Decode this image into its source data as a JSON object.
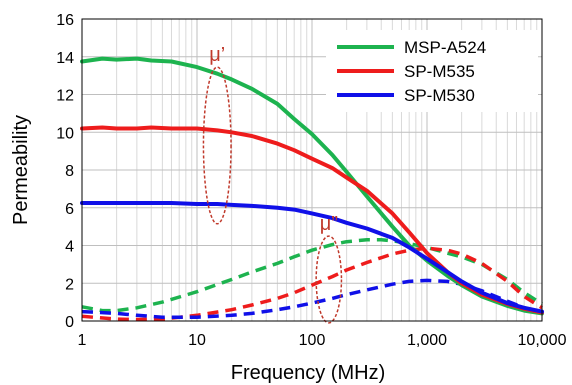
{
  "chart_data": {
    "type": "line",
    "title": "",
    "xlabel": "Frequency (MHz)",
    "ylabel": "Permeability",
    "x_scale": "log",
    "xlim": [
      1,
      10000
    ],
    "ylim": [
      0,
      16
    ],
    "x_ticks": [
      1,
      10,
      100,
      1000,
      10000
    ],
    "x_tick_labels": [
      "1",
      "10",
      "100",
      "1,000",
      "10,000"
    ],
    "y_ticks": [
      0,
      2,
      4,
      6,
      8,
      10,
      12,
      14,
      16
    ],
    "y_tick_labels": [
      "0",
      "2",
      "4",
      "6",
      "8",
      "10",
      "12",
      "14",
      "16"
    ],
    "grid": true,
    "legend": {
      "position": "top-right"
    },
    "annotations": [
      {
        "text": "μ’",
        "x": 15,
        "y": 10.2,
        "ellipse_x": 15,
        "ellipse_y": 9.3,
        "ellipse_w_dec": 0.24,
        "ellipse_h": 8.3
      },
      {
        "text": "μ”",
        "x": 140,
        "y": 3.0,
        "ellipse_x": 140,
        "ellipse_y": 2.2,
        "ellipse_w_dec": 0.22,
        "ellipse_h": 4.6
      }
    ],
    "series": [
      {
        "name": "MSP-A524",
        "part": "real",
        "color": "#1db34f",
        "dash": "solid",
        "in_legend": true,
        "x": [
          1,
          1.5,
          2,
          3,
          4,
          6,
          10,
          15,
          20,
          30,
          50,
          70,
          100,
          150,
          200,
          300,
          500,
          700,
          1000,
          1500,
          2000,
          3000,
          5000,
          7000,
          10000
        ],
        "y": [
          13.75,
          13.9,
          13.85,
          13.9,
          13.8,
          13.75,
          13.45,
          13.1,
          12.8,
          12.3,
          11.5,
          10.7,
          9.9,
          8.8,
          7.9,
          6.6,
          5.0,
          4.0,
          3.2,
          2.4,
          1.9,
          1.3,
          0.8,
          0.55,
          0.4
        ]
      },
      {
        "name": "SP-M535",
        "part": "real",
        "color": "#ee1c1c",
        "dash": "solid",
        "in_legend": true,
        "x": [
          1,
          1.5,
          2,
          3,
          4,
          6,
          10,
          15,
          20,
          30,
          50,
          70,
          100,
          150,
          200,
          300,
          500,
          700,
          1000,
          1500,
          2000,
          3000,
          5000,
          7000,
          10000
        ],
        "y": [
          10.2,
          10.25,
          10.2,
          10.2,
          10.25,
          10.2,
          10.2,
          10.1,
          10.0,
          9.8,
          9.4,
          9.05,
          8.6,
          8.1,
          7.6,
          6.9,
          5.7,
          4.7,
          3.6,
          2.6,
          2.0,
          1.4,
          0.9,
          0.65,
          0.45
        ]
      },
      {
        "name": "SP-M530",
        "part": "real",
        "color": "#1010e8",
        "dash": "solid",
        "in_legend": true,
        "x": [
          1,
          1.5,
          2,
          3,
          4,
          6,
          10,
          15,
          20,
          30,
          50,
          70,
          100,
          150,
          200,
          300,
          500,
          700,
          1000,
          1500,
          2000,
          3000,
          5000,
          7000,
          10000
        ],
        "y": [
          6.25,
          6.25,
          6.25,
          6.25,
          6.25,
          6.25,
          6.2,
          6.2,
          6.15,
          6.1,
          6.0,
          5.9,
          5.7,
          5.45,
          5.2,
          4.9,
          4.4,
          3.9,
          3.3,
          2.6,
          2.1,
          1.5,
          0.95,
          0.7,
          0.5
        ]
      },
      {
        "name": "MSP-A524",
        "part": "imaginary",
        "color": "#1db34f",
        "dash": "dashed",
        "in_legend": false,
        "x": [
          1,
          1.5,
          2,
          3,
          5,
          10,
          20,
          30,
          50,
          70,
          100,
          150,
          200,
          300,
          400,
          500,
          700,
          1000,
          1500,
          2000,
          3000,
          5000,
          7000,
          10000
        ],
        "y": [
          0.75,
          0.55,
          0.55,
          0.7,
          1.0,
          1.55,
          2.2,
          2.6,
          3.05,
          3.4,
          3.75,
          4.05,
          4.2,
          4.3,
          4.3,
          4.25,
          4.1,
          3.9,
          3.6,
          3.4,
          3.0,
          2.2,
          1.5,
          0.9
        ]
      },
      {
        "name": "SP-M535",
        "part": "imaginary",
        "color": "#ee1c1c",
        "dash": "dashed",
        "in_legend": false,
        "x": [
          1,
          2,
          3,
          5,
          10,
          20,
          30,
          50,
          70,
          100,
          150,
          200,
          300,
          500,
          700,
          1000,
          1500,
          2000,
          3000,
          5000,
          7000,
          10000
        ],
        "y": [
          0.25,
          0.1,
          0.08,
          0.1,
          0.3,
          0.6,
          0.85,
          1.2,
          1.5,
          1.9,
          2.35,
          2.7,
          3.1,
          3.55,
          3.75,
          3.85,
          3.75,
          3.55,
          3.05,
          2.1,
          1.3,
          0.7
        ]
      },
      {
        "name": "SP-M530",
        "part": "imaginary",
        "color": "#1010e8",
        "dash": "dashed",
        "in_legend": false,
        "x": [
          1,
          2,
          3,
          5,
          10,
          20,
          30,
          50,
          70,
          100,
          150,
          200,
          300,
          500,
          700,
          1000,
          1500,
          2000,
          3000,
          5000,
          7000,
          10000
        ],
        "y": [
          0.5,
          0.4,
          0.3,
          0.2,
          0.2,
          0.3,
          0.4,
          0.6,
          0.75,
          0.95,
          1.2,
          1.4,
          1.65,
          1.95,
          2.1,
          2.15,
          2.1,
          1.95,
          1.6,
          1.05,
          0.7,
          0.45
        ]
      }
    ]
  }
}
